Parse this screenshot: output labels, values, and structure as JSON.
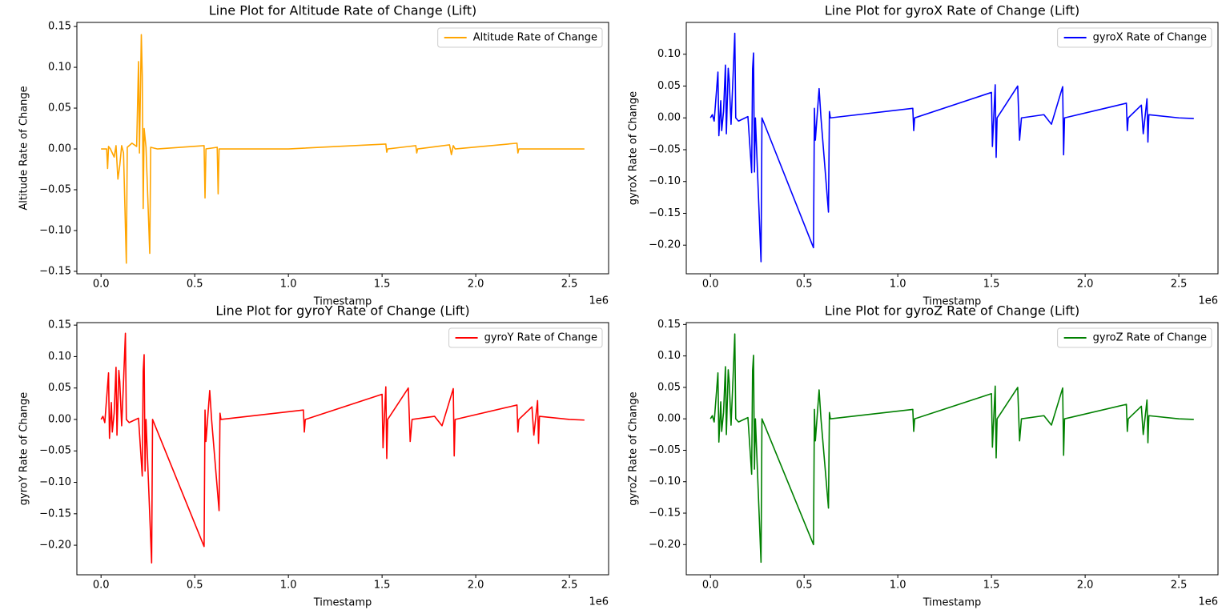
{
  "chart_data": [
    {
      "type": "line",
      "title": "Line Plot for Altitude Rate of Change (Lift)",
      "x_label": "Timestamp",
      "y_label": "Altitude Rate of Change",
      "x_offset_label": "1e6",
      "legend": "upper right",
      "xlim": [
        -129000,
        2709000
      ],
      "ylim": [
        -0.153,
        0.155
      ],
      "xticks": [
        {
          "value": 0,
          "label": "0.0"
        },
        {
          "value": 500000,
          "label": "0.5"
        },
        {
          "value": 1000000,
          "label": "1.0"
        },
        {
          "value": 1500000,
          "label": "1.5"
        },
        {
          "value": 2000000,
          "label": "2.0"
        },
        {
          "value": 2500000,
          "label": "2.5"
        }
      ],
      "yticks": [
        {
          "value": -0.15,
          "label": "−0.15"
        },
        {
          "value": -0.1,
          "label": "−0.10"
        },
        {
          "value": -0.05,
          "label": "−0.05"
        },
        {
          "value": 0,
          "label": "0.00"
        },
        0.05,
        {
          "value": 0.1,
          "label": "0.10"
        },
        0.15
      ],
      "x": [
        0,
        30000,
        35000,
        40000,
        50000,
        70000,
        80000,
        90000,
        100000,
        110000,
        120000,
        135000,
        140000,
        165000,
        190000,
        200000,
        205000,
        215000,
        220000,
        225000,
        230000,
        240000,
        260000,
        265000,
        300000,
        550000,
        555000,
        560000,
        620000,
        625000,
        630000,
        1000000,
        1520000,
        1525000,
        1530000,
        1680000,
        1685000,
        1690000,
        1860000,
        1870000,
        1880000,
        1890000,
        2220000,
        2225000,
        2230000,
        2580000
      ],
      "series": [
        {
          "name": "Altitude Rate of Change",
          "color": "#ffa500",
          "values": [
            0,
            0,
            -0.024,
            0.003,
            0,
            -0.01,
            0.004,
            -0.037,
            -0.02,
            0.004,
            -0.005,
            -0.14,
            0.002,
            0.007,
            0.003,
            0.107,
            -0.005,
            0.14,
            0.09,
            -0.073,
            0.025,
            0.002,
            -0.128,
            0.002,
            0,
            0.004,
            -0.06,
            0,
            0.002,
            -0.055,
            0,
            0,
            0.006,
            -0.004,
            0,
            0.004,
            -0.005,
            0,
            0.005,
            -0.007,
            0.004,
            0,
            0.007,
            -0.005,
            0,
            0
          ]
        }
      ]
    },
    {
      "type": "line",
      "title": "Line Plot for gyroX Rate of Change (Lift)",
      "x_label": "Timestamp",
      "y_label": "gyroX Rate of Change",
      "x_offset_label": "1e6",
      "legend": "upper right",
      "xlim": [
        -129000,
        2709000
      ],
      "ylim": [
        -0.245,
        0.15
      ],
      "xticks": [
        {
          "value": 0,
          "label": "0.0"
        },
        {
          "value": 500000,
          "label": "0.5"
        },
        {
          "value": 1000000,
          "label": "1.0"
        },
        {
          "value": 1500000,
          "label": "1.5"
        },
        {
          "value": 2000000,
          "label": "2.0"
        },
        {
          "value": 2500000,
          "label": "2.5"
        }
      ],
      "yticks": [
        {
          "value": -0.2,
          "label": "−0.20"
        },
        {
          "value": -0.15,
          "label": "−0.15"
        },
        {
          "value": -0.1,
          "label": "−0.10"
        },
        {
          "value": -0.05,
          "label": "−0.05"
        },
        {
          "value": 0,
          "label": "0.00"
        },
        0.05,
        {
          "value": 0.1,
          "label": "0.10"
        }
      ],
      "x": [
        0,
        10000,
        20000,
        40000,
        45000,
        55000,
        60000,
        70000,
        80000,
        85000,
        95000,
        100000,
        110000,
        120000,
        130000,
        135000,
        150000,
        200000,
        220000,
        225000,
        230000,
        235000,
        240000,
        270000,
        275000,
        550000,
        555000,
        560000,
        580000,
        590000,
        630000,
        635000,
        640000,
        1080000,
        1085000,
        1090000,
        1500000,
        1505000,
        1520000,
        1525000,
        1530000,
        1640000,
        1650000,
        1660000,
        1780000,
        1820000,
        1880000,
        1885000,
        1890000,
        2220000,
        2225000,
        2230000,
        2300000,
        2310000,
        2330000,
        2335000,
        2340000,
        2500000,
        2580000
      ],
      "series": [
        {
          "name": "gyroX Rate of Change",
          "color": "#0000ff",
          "values": [
            0,
            0.005,
            -0.005,
            0.072,
            -0.028,
            0.027,
            -0.02,
            0.01,
            0.083,
            -0.025,
            0.078,
            0.06,
            -0.01,
            0.06,
            0.133,
            0,
            -0.005,
            0.002,
            -0.086,
            0.077,
            0.102,
            -0.085,
            0,
            -0.226,
            0,
            -0.204,
            0.015,
            -0.035,
            0.046,
            0,
            -0.148,
            0.01,
            0,
            0.015,
            -0.02,
            0,
            0.04,
            -0.045,
            0.052,
            -0.062,
            0,
            0.05,
            -0.035,
            0,
            0.005,
            -0.01,
            0.049,
            -0.058,
            0,
            0.023,
            -0.02,
            0,
            0.02,
            -0.025,
            0.03,
            -0.038,
            0.005,
            0,
            -0.001
          ]
        }
      ]
    },
    {
      "type": "line",
      "title": "Line Plot for gyroY Rate of Change (Lift)",
      "x_label": "Timestamp",
      "y_label": "gyroY Rate of Change",
      "x_offset_label": "1e6",
      "legend": "upper right",
      "xlim": [
        -129000,
        2709000
      ],
      "ylim": [
        -0.247,
        0.154
      ],
      "xticks": [
        {
          "value": 0,
          "label": "0.0"
        },
        {
          "value": 500000,
          "label": "0.5"
        },
        {
          "value": 1000000,
          "label": "1.0"
        },
        {
          "value": 1500000,
          "label": "1.5"
        },
        {
          "value": 2000000,
          "label": "2.0"
        },
        {
          "value": 2500000,
          "label": "2.5"
        }
      ],
      "yticks": [
        {
          "value": -0.2,
          "label": "−0.20"
        },
        {
          "value": -0.15,
          "label": "−0.15"
        },
        {
          "value": -0.1,
          "label": "−0.10"
        },
        {
          "value": -0.05,
          "label": "−0.05"
        },
        {
          "value": 0,
          "label": "0.00"
        },
        0.05,
        {
          "value": 0.1,
          "label": "0.10"
        },
        0.15
      ],
      "x": [
        0,
        10000,
        20000,
        40000,
        45000,
        55000,
        60000,
        70000,
        80000,
        85000,
        95000,
        100000,
        110000,
        120000,
        130000,
        135000,
        150000,
        200000,
        220000,
        225000,
        230000,
        235000,
        240000,
        270000,
        275000,
        550000,
        555000,
        560000,
        580000,
        590000,
        630000,
        635000,
        640000,
        1080000,
        1085000,
        1090000,
        1500000,
        1505000,
        1520000,
        1525000,
        1530000,
        1640000,
        1650000,
        1660000,
        1780000,
        1820000,
        1880000,
        1885000,
        1890000,
        2220000,
        2225000,
        2230000,
        2300000,
        2310000,
        2330000,
        2335000,
        2340000,
        2500000,
        2580000
      ],
      "series": [
        {
          "name": "gyroY Rate of Change",
          "color": "#ff0000",
          "values": [
            0,
            0.005,
            -0.005,
            0.074,
            -0.03,
            0.027,
            -0.02,
            0.01,
            0.083,
            -0.025,
            0.078,
            0.06,
            -0.01,
            0.06,
            0.137,
            0,
            -0.005,
            0.002,
            -0.09,
            0.077,
            0.103,
            -0.082,
            0,
            -0.228,
            0,
            -0.202,
            0.015,
            -0.035,
            0.046,
            0,
            -0.145,
            0.01,
            0,
            0.015,
            -0.02,
            0,
            0.04,
            -0.045,
            0.052,
            -0.062,
            0,
            0.05,
            -0.035,
            0,
            0.005,
            -0.01,
            0.049,
            -0.058,
            0,
            0.023,
            -0.02,
            0,
            0.02,
            -0.025,
            0.03,
            -0.038,
            0.005,
            0,
            -0.001
          ]
        }
      ]
    },
    {
      "type": "line",
      "title": "Line Plot for gyroZ Rate of Change (Lift)",
      "x_label": "Timestamp",
      "y_label": "gyroZ Rate of Change",
      "x_offset_label": "1e6",
      "legend": "upper right",
      "xlim": [
        -129000,
        2709000
      ],
      "ylim": [
        -0.248,
        0.153
      ],
      "xticks": [
        {
          "value": 0,
          "label": "0.0"
        },
        {
          "value": 500000,
          "label": "0.5"
        },
        {
          "value": 1000000,
          "label": "1.0"
        },
        {
          "value": 1500000,
          "label": "1.5"
        },
        {
          "value": 2000000,
          "label": "2.0"
        },
        {
          "value": 2500000,
          "label": "2.5"
        }
      ],
      "yticks": [
        {
          "value": -0.2,
          "label": "−0.20"
        },
        {
          "value": -0.15,
          "label": "−0.15"
        },
        {
          "value": -0.1,
          "label": "−0.10"
        },
        {
          "value": -0.05,
          "label": "−0.05"
        },
        {
          "value": 0,
          "label": "0.00"
        },
        0.05,
        {
          "value": 0.1,
          "label": "0.10"
        },
        0.15
      ],
      "x": [
        0,
        10000,
        20000,
        40000,
        45000,
        55000,
        60000,
        70000,
        80000,
        85000,
        95000,
        100000,
        110000,
        120000,
        130000,
        135000,
        150000,
        200000,
        220000,
        225000,
        230000,
        235000,
        240000,
        270000,
        275000,
        550000,
        555000,
        560000,
        580000,
        590000,
        630000,
        635000,
        640000,
        1080000,
        1085000,
        1090000,
        1500000,
        1505000,
        1520000,
        1525000,
        1530000,
        1640000,
        1650000,
        1660000,
        1780000,
        1820000,
        1880000,
        1885000,
        1890000,
        2220000,
        2225000,
        2230000,
        2300000,
        2310000,
        2330000,
        2335000,
        2340000,
        2500000,
        2580000
      ],
      "series": [
        {
          "name": "gyroZ Rate of Change",
          "color": "#008000",
          "values": [
            0,
            0.005,
            -0.005,
            0.073,
            -0.037,
            0.027,
            -0.02,
            0.01,
            0.083,
            -0.025,
            0.078,
            0.06,
            -0.01,
            0.06,
            0.135,
            0,
            -0.005,
            0.002,
            -0.088,
            0.077,
            0.101,
            -0.08,
            0,
            -0.228,
            0,
            -0.2,
            0.015,
            -0.035,
            0.046,
            0,
            -0.142,
            0.01,
            0,
            0.015,
            -0.02,
            0,
            0.04,
            -0.045,
            0.052,
            -0.062,
            0,
            0.05,
            -0.035,
            0,
            0.005,
            -0.01,
            0.049,
            -0.058,
            0,
            0.023,
            -0.02,
            0,
            0.02,
            -0.025,
            0.03,
            -0.038,
            0.005,
            0,
            -0.001
          ]
        }
      ]
    }
  ]
}
